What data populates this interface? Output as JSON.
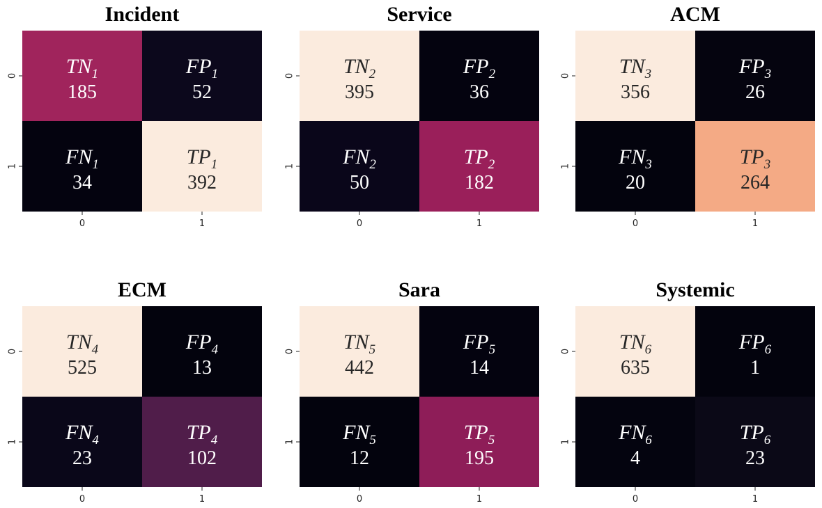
{
  "chart_data": [
    {
      "type": "heatmap",
      "title": "Incident",
      "xticks": [
        "0",
        "1"
      ],
      "yticks": [
        "0",
        "1"
      ],
      "cells": [
        [
          {
            "name": "TN",
            "sub": "1",
            "value": 185
          },
          {
            "name": "FP",
            "sub": "1",
            "value": 52
          }
        ],
        [
          {
            "name": "FN",
            "sub": "1",
            "value": 34
          },
          {
            "name": "TP",
            "sub": "1",
            "value": 392
          }
        ]
      ],
      "colors": [
        [
          "#a0245c",
          "#0c081c"
        ],
        [
          "#04030f",
          "#fbebde"
        ]
      ]
    },
    {
      "type": "heatmap",
      "title": "Service",
      "xticks": [
        "0",
        "1"
      ],
      "yticks": [
        "0",
        "1"
      ],
      "cells": [
        [
          {
            "name": "TN",
            "sub": "2",
            "value": 395
          },
          {
            "name": "FP",
            "sub": "2",
            "value": 36
          }
        ],
        [
          {
            "name": "FN",
            "sub": "2",
            "value": 50
          },
          {
            "name": "TP",
            "sub": "2",
            "value": 182
          }
        ]
      ],
      "colors": [
        [
          "#fbebde",
          "#04030f"
        ],
        [
          "#0a061a",
          "#9a1f5a"
        ]
      ]
    },
    {
      "type": "heatmap",
      "title": "ACM",
      "xticks": [
        "0",
        "1"
      ],
      "yticks": [
        "0",
        "1"
      ],
      "cells": [
        [
          {
            "name": "TN",
            "sub": "3",
            "value": 356
          },
          {
            "name": "FP",
            "sub": "3",
            "value": 26
          }
        ],
        [
          {
            "name": "FN",
            "sub": "3",
            "value": 20
          },
          {
            "name": "TP",
            "sub": "3",
            "value": 264
          }
        ]
      ],
      "colors": [
        [
          "#fbebde",
          "#05040f"
        ],
        [
          "#03030d",
          "#f4aa85"
        ]
      ]
    },
    {
      "type": "heatmap",
      "title": "ECM",
      "xticks": [
        "0",
        "1"
      ],
      "yticks": [
        "0",
        "1"
      ],
      "cells": [
        [
          {
            "name": "TN",
            "sub": "4",
            "value": 525
          },
          {
            "name": "FP",
            "sub": "4",
            "value": 13
          }
        ],
        [
          {
            "name": "FN",
            "sub": "4",
            "value": 23
          },
          {
            "name": "TP",
            "sub": "4",
            "value": 102
          }
        ]
      ],
      "colors": [
        [
          "#fbebde",
          "#03030d"
        ],
        [
          "#0a0719",
          "#501d4a"
        ]
      ]
    },
    {
      "type": "heatmap",
      "title": "Sara",
      "xticks": [
        "0",
        "1"
      ],
      "yticks": [
        "0",
        "1"
      ],
      "cells": [
        [
          {
            "name": "TN",
            "sub": "5",
            "value": 442
          },
          {
            "name": "FP",
            "sub": "5",
            "value": 14
          }
        ],
        [
          {
            "name": "FN",
            "sub": "5",
            "value": 12
          },
          {
            "name": "TP",
            "sub": "5",
            "value": 195
          }
        ]
      ],
      "colors": [
        [
          "#fbebde",
          "#04030f"
        ],
        [
          "#03030d",
          "#8e1d58"
        ]
      ]
    },
    {
      "type": "heatmap",
      "title": "Systemic",
      "xticks": [
        "0",
        "1"
      ],
      "yticks": [
        "0",
        "1"
      ],
      "cells": [
        [
          {
            "name": "TN",
            "sub": "6",
            "value": 635
          },
          {
            "name": "FP",
            "sub": "6",
            "value": 1
          }
        ],
        [
          {
            "name": "FN",
            "sub": "6",
            "value": 4
          },
          {
            "name": "TP",
            "sub": "6",
            "value": 23
          }
        ]
      ],
      "colors": [
        [
          "#fbebde",
          "#03030d"
        ],
        [
          "#04040f",
          "#0b0917"
        ]
      ]
    }
  ]
}
